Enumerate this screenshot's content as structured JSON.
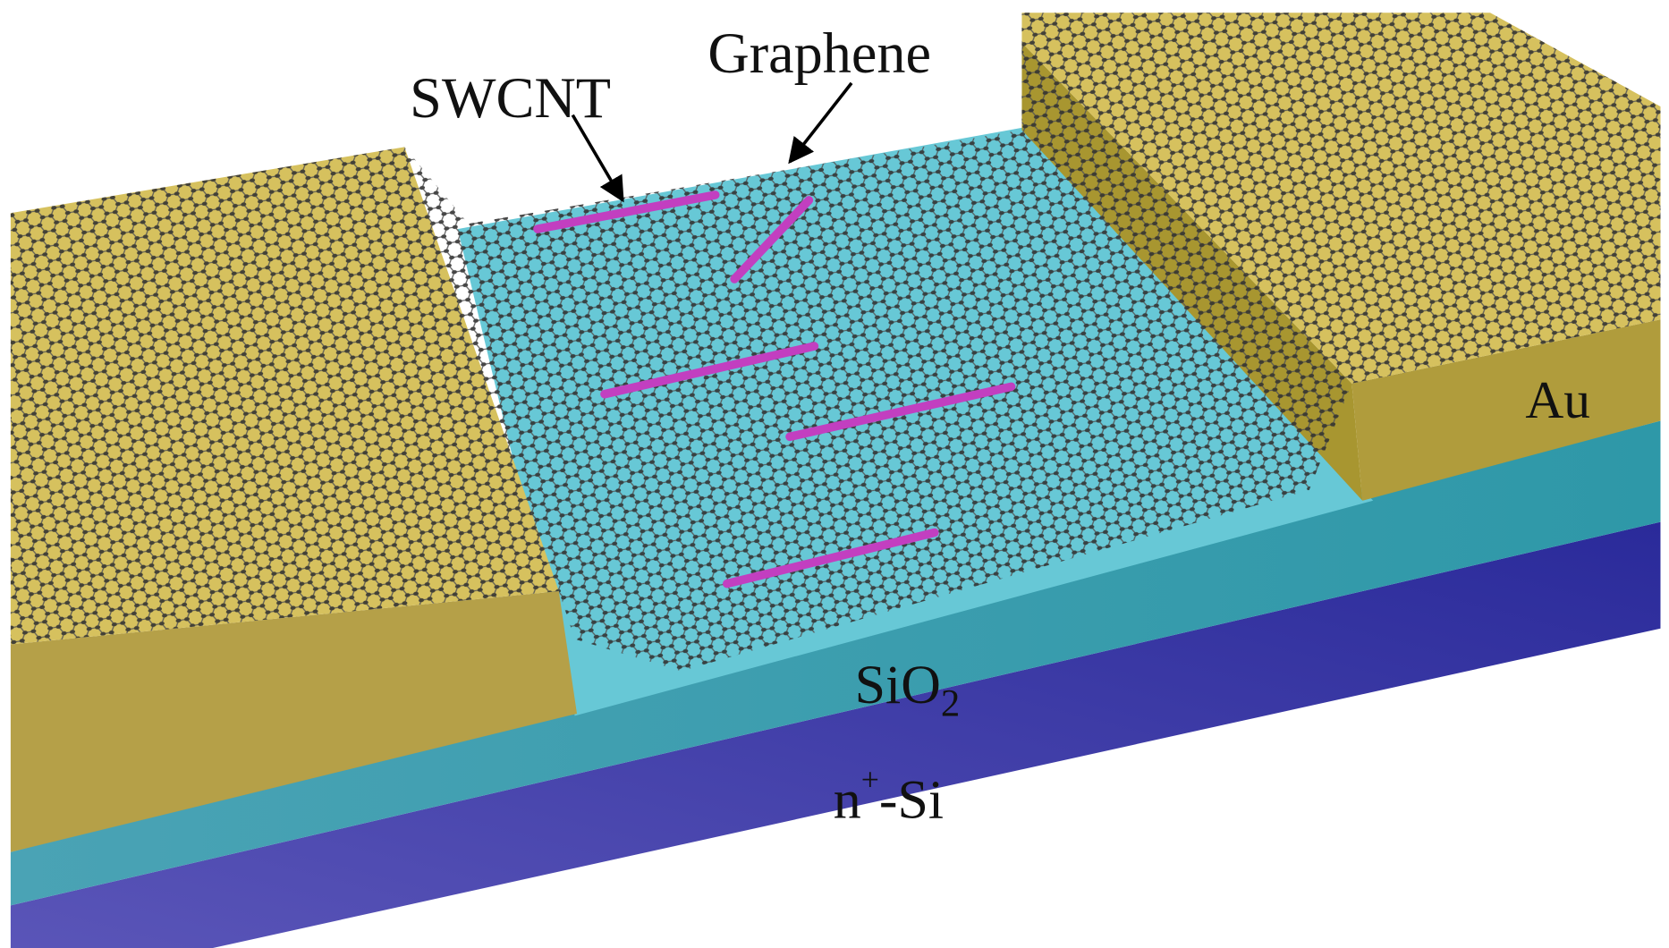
{
  "labels": {
    "swcnt": "SWCNT",
    "graphene": "Graphene",
    "au": "Au",
    "sio2": {
      "base": "SiO",
      "sub": "2"
    },
    "nsi": {
      "base": "n",
      "sup": "+",
      "rest": "-Si"
    }
  }
}
